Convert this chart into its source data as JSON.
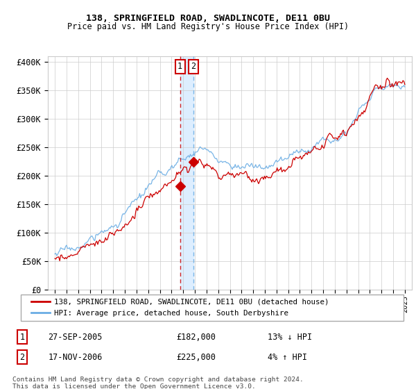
{
  "title1": "138, SPRINGFIELD ROAD, SWADLINCOTE, DE11 0BU",
  "title2": "Price paid vs. HM Land Registry's House Price Index (HPI)",
  "ylim": [
    0,
    410000
  ],
  "yticks": [
    0,
    50000,
    100000,
    150000,
    200000,
    250000,
    300000,
    350000,
    400000
  ],
  "ytick_labels": [
    "£0",
    "£50K",
    "£100K",
    "£150K",
    "£200K",
    "£250K",
    "£300K",
    "£350K",
    "£400K"
  ],
  "hpi_color": "#6aade4",
  "price_color": "#cc0000",
  "background_color": "#ffffff",
  "grid_color": "#cccccc",
  "legend1": "138, SPRINGFIELD ROAD, SWADLINCOTE, DE11 0BU (detached house)",
  "legend2": "HPI: Average price, detached house, South Derbyshire",
  "transaction1_date": "27-SEP-2005",
  "transaction1_price": "£182,000",
  "transaction1_hpi": "13% ↓ HPI",
  "transaction2_date": "17-NOV-2006",
  "transaction2_price": "£225,000",
  "transaction2_hpi": "4% ↑ HPI",
  "footnote": "Contains HM Land Registry data © Crown copyright and database right 2024.\nThis data is licensed under the Open Government Licence v3.0.",
  "transaction1_year": 2005.73,
  "transaction2_year": 2006.88,
  "transaction1_price_val": 182000,
  "transaction2_price_val": 225000,
  "shade_color": "#ddeeff"
}
